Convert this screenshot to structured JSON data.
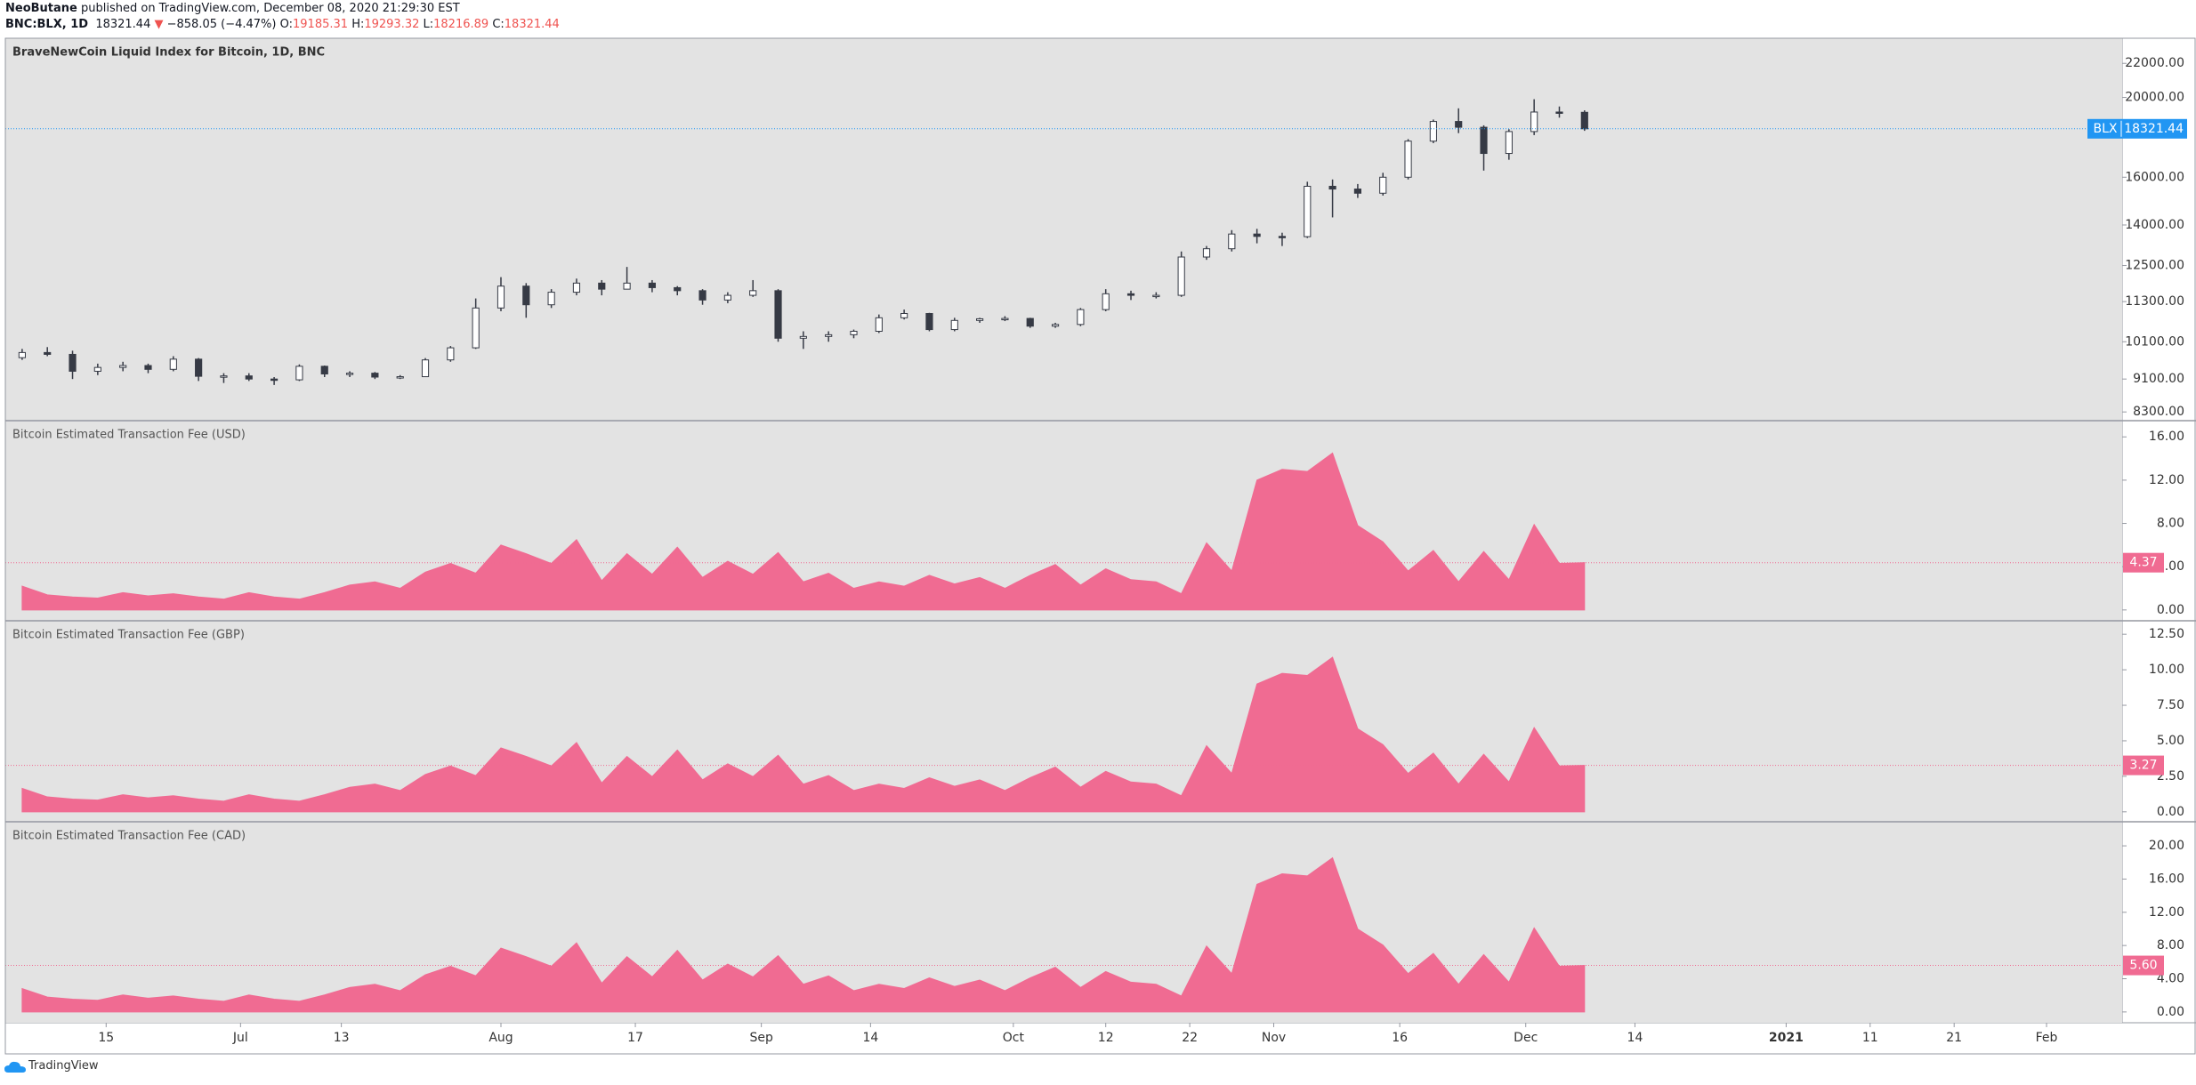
{
  "header": {
    "author": "NeoButane",
    "published": "published on TradingView.com, December 08, 2020 21:29:30 EST",
    "symbol": "BNC:BLX, 1D",
    "last": "18321.44",
    "arrow": "▼",
    "change": "−858.05 (−4.47%)",
    "ohlc": [
      {
        "key": "O:",
        "value": "19185.31"
      },
      {
        "key": "H:",
        "value": "19293.32"
      },
      {
        "key": "L:",
        "value": "18216.89"
      },
      {
        "key": "C:",
        "value": "18321.44"
      }
    ]
  },
  "footer": "TradingView",
  "chart_data": [
    {
      "type": "candlestick",
      "title": "BraveNewCoin Liquid Index for Bitcoin, 1D, BNC",
      "symbol": "BLX",
      "log_scale": true,
      "up_color": "#ffffff",
      "down_color": "#363a45",
      "marker_color": "#2196f3",
      "xlim": [
        "2020-06-03",
        "2021-02-10"
      ],
      "xticks": [
        {
          "value": "2020-06-15",
          "label": "15"
        },
        {
          "value": "2020-07-01",
          "label": "Jul"
        },
        {
          "value": "2020-07-13",
          "label": "13"
        },
        {
          "value": "2020-08-01",
          "label": "Aug"
        },
        {
          "value": "2020-08-17",
          "label": "17"
        },
        {
          "value": "2020-09-01",
          "label": "Sep"
        },
        {
          "value": "2020-09-14",
          "label": "14"
        },
        {
          "value": "2020-10-01",
          "label": "Oct"
        },
        {
          "value": "2020-10-12",
          "label": "12"
        },
        {
          "value": "2020-10-22",
          "label": "22"
        },
        {
          "value": "2020-11-01",
          "label": "Nov"
        },
        {
          "value": "2020-11-16",
          "label": "16"
        },
        {
          "value": "2020-12-01",
          "label": "Dec"
        },
        {
          "value": "2020-12-14",
          "label": "14"
        },
        {
          "value": "2021-01-01",
          "label": "2021"
        },
        {
          "value": "2021-01-11",
          "label": "11"
        },
        {
          "value": "2021-01-21",
          "label": "21"
        },
        {
          "value": "2021-02-01",
          "label": "Feb"
        }
      ],
      "ylim": [
        8100,
        23600
      ],
      "yticks": [
        {
          "value": 8300,
          "label": "8300.00"
        },
        {
          "value": 9100,
          "label": "9100.00"
        },
        {
          "value": 10100,
          "label": "10100.00"
        },
        {
          "value": 11300,
          "label": "11300.00"
        },
        {
          "value": 12500,
          "label": "12500.00"
        },
        {
          "value": 14000,
          "label": "14000.00"
        },
        {
          "value": 16000,
          "label": "16000.00"
        },
        {
          "value": 20000,
          "label": "20000.00"
        },
        {
          "value": 22000,
          "label": "22000.00"
        }
      ],
      "x": [
        "2020-06-05",
        "2020-06-08",
        "2020-06-11",
        "2020-06-14",
        "2020-06-17",
        "2020-06-20",
        "2020-06-23",
        "2020-06-26",
        "2020-06-29",
        "2020-07-02",
        "2020-07-05",
        "2020-07-08",
        "2020-07-11",
        "2020-07-14",
        "2020-07-17",
        "2020-07-20",
        "2020-07-23",
        "2020-07-26",
        "2020-07-29",
        "2020-08-01",
        "2020-08-04",
        "2020-08-07",
        "2020-08-10",
        "2020-08-13",
        "2020-08-16",
        "2020-08-19",
        "2020-08-22",
        "2020-08-25",
        "2020-08-28",
        "2020-08-31",
        "2020-09-03",
        "2020-09-06",
        "2020-09-09",
        "2020-09-12",
        "2020-09-15",
        "2020-09-18",
        "2020-09-21",
        "2020-09-24",
        "2020-09-27",
        "2020-09-30",
        "2020-10-03",
        "2020-10-06",
        "2020-10-09",
        "2020-10-12",
        "2020-10-15",
        "2020-10-18",
        "2020-10-21",
        "2020-10-24",
        "2020-10-27",
        "2020-10-30",
        "2020-11-02",
        "2020-11-05",
        "2020-11-08",
        "2020-11-11",
        "2020-11-14",
        "2020-11-17",
        "2020-11-20",
        "2020-11-23",
        "2020-11-26",
        "2020-11-29",
        "2020-12-02",
        "2020-12-05",
        "2020-12-08"
      ],
      "open": [
        9660,
        9800,
        9750,
        9300,
        9400,
        9450,
        9350,
        9620,
        9170,
        9180,
        9100,
        9080,
        9430,
        9230,
        9250,
        9150,
        9160,
        9600,
        9930,
        11100,
        11800,
        11200,
        11600,
        11900,
        11700,
        11900,
        11750,
        11650,
        11350,
        11500,
        11650,
        10200,
        10250,
        10300,
        10400,
        10800,
        10930,
        10450,
        10720,
        10770,
        10780,
        10550,
        10600,
        11050,
        11550,
        11500,
        11500,
        12800,
        13100,
        13650,
        13560,
        13550,
        15600,
        15480,
        15300,
        16000,
        17700,
        18700,
        18400,
        17100,
        18180,
        19200,
        19185.31
      ],
      "high": [
        9900,
        9950,
        9850,
        9500,
        9550,
        9500,
        9700,
        9650,
        9250,
        9250,
        9150,
        9480,
        9450,
        9300,
        9280,
        9200,
        9650,
        9980,
        11400,
        12100,
        11900,
        11700,
        12050,
        12000,
        12450,
        12000,
        11800,
        11700,
        11600,
        12000,
        11700,
        10400,
        10400,
        10450,
        10900,
        11050,
        10950,
        10800,
        10800,
        10850,
        10800,
        10650,
        11100,
        11700,
        11650,
        11600,
        13000,
        13200,
        13800,
        13850,
        13700,
        15800,
        15900,
        15700,
        16200,
        17800,
        18800,
        19400,
        18500,
        18300,
        19900,
        19500,
        19293.32
      ],
      "low": [
        9600,
        9700,
        9100,
        9200,
        9300,
        9250,
        9300,
        9050,
        9000,
        9050,
        8950,
        9050,
        9150,
        9150,
        9100,
        9100,
        9150,
        9550,
        9900,
        11000,
        10800,
        11100,
        11500,
        11500,
        11700,
        11600,
        11500,
        11200,
        11250,
        11450,
        10100,
        9900,
        10100,
        10200,
        10350,
        10750,
        10400,
        10400,
        10650,
        10700,
        10500,
        10500,
        10550,
        11000,
        11350,
        11400,
        11450,
        12700,
        13000,
        13300,
        13200,
        13500,
        14300,
        15100,
        15200,
        15900,
        17600,
        18100,
        16300,
        16800,
        18000,
        18900,
        18216.89
      ],
      "close": [
        9800,
        9750,
        9300,
        9400,
        9450,
        9350,
        9620,
        9170,
        9180,
        9100,
        9080,
        9430,
        9230,
        9250,
        9150,
        9160,
        9600,
        9930,
        11100,
        11800,
        11200,
        11600,
        11900,
        11700,
        11900,
        11750,
        11650,
        11350,
        11500,
        11650,
        10200,
        10250,
        10300,
        10400,
        10800,
        10930,
        10450,
        10720,
        10770,
        10780,
        10550,
        10600,
        11050,
        11550,
        11500,
        11500,
        12800,
        13100,
        13650,
        13560,
        13550,
        15600,
        15480,
        15300,
        16000,
        17700,
        18700,
        18400,
        17100,
        18180,
        19200,
        19150,
        18321.44
      ]
    },
    {
      "type": "area",
      "title": "Bitcoin Estimated Transaction Fee (USD)",
      "color": "#f06b92",
      "last_label": "4.37",
      "ylim": [
        -1,
        17.5
      ],
      "yticks": [
        {
          "value": 0,
          "label": "0.00"
        },
        {
          "value": 4,
          "label": "4.00"
        },
        {
          "value": 8,
          "label": "8.00"
        },
        {
          "value": 12,
          "label": "12.00"
        },
        {
          "value": 16,
          "label": "16.00"
        }
      ],
      "x": [
        "2020-06-05",
        "2020-06-08",
        "2020-06-11",
        "2020-06-14",
        "2020-06-17",
        "2020-06-20",
        "2020-06-23",
        "2020-06-26",
        "2020-06-29",
        "2020-07-02",
        "2020-07-05",
        "2020-07-08",
        "2020-07-11",
        "2020-07-14",
        "2020-07-17",
        "2020-07-20",
        "2020-07-23",
        "2020-07-26",
        "2020-07-29",
        "2020-08-01",
        "2020-08-04",
        "2020-08-07",
        "2020-08-10",
        "2020-08-13",
        "2020-08-16",
        "2020-08-19",
        "2020-08-22",
        "2020-08-25",
        "2020-08-28",
        "2020-08-31",
        "2020-09-03",
        "2020-09-06",
        "2020-09-09",
        "2020-09-12",
        "2020-09-15",
        "2020-09-18",
        "2020-09-21",
        "2020-09-24",
        "2020-09-27",
        "2020-09-30",
        "2020-10-03",
        "2020-10-06",
        "2020-10-09",
        "2020-10-12",
        "2020-10-15",
        "2020-10-18",
        "2020-10-21",
        "2020-10-24",
        "2020-10-27",
        "2020-10-30",
        "2020-11-02",
        "2020-11-05",
        "2020-11-08",
        "2020-11-11",
        "2020-11-14",
        "2020-11-17",
        "2020-11-20",
        "2020-11-23",
        "2020-11-26",
        "2020-11-29",
        "2020-12-02",
        "2020-12-05",
        "2020-12-08"
      ],
      "values": [
        2.2,
        1.4,
        1.2,
        1.1,
        1.6,
        1.3,
        1.5,
        1.2,
        1.0,
        1.6,
        1.2,
        1.0,
        1.6,
        2.3,
        2.6,
        2.0,
        3.5,
        4.3,
        3.4,
        6.0,
        5.2,
        4.3,
        6.5,
        2.7,
        5.2,
        3.3,
        5.8,
        3.0,
        4.5,
        3.3,
        5.3,
        2.6,
        3.4,
        2.0,
        2.6,
        2.2,
        3.2,
        2.4,
        3.0,
        2.0,
        3.2,
        4.2,
        2.3,
        3.8,
        2.8,
        2.6,
        1.5,
        6.2,
        3.6,
        12.0,
        13.0,
        12.8,
        14.5,
        7.8,
        6.3,
        3.6,
        5.5,
        2.6,
        5.4,
        2.8,
        7.9,
        4.3,
        4.37
      ]
    },
    {
      "type": "area",
      "title": "Bitcoin Estimated Transaction Fee (GBP)",
      "color": "#f06b92",
      "last_label": "3.27",
      "ylim": [
        -0.7,
        13.45
      ],
      "yticks": [
        {
          "value": 0,
          "label": "0.00"
        },
        {
          "value": 2.5,
          "label": "2.50"
        },
        {
          "value": 5,
          "label": "5.00"
        },
        {
          "value": 7.5,
          "label": "7.50"
        },
        {
          "value": 10,
          "label": "10.00"
        },
        {
          "value": 12.5,
          "label": "12.50"
        }
      ],
      "x": [
        "2020-06-05",
        "2020-06-08",
        "2020-06-11",
        "2020-06-14",
        "2020-06-17",
        "2020-06-20",
        "2020-06-23",
        "2020-06-26",
        "2020-06-29",
        "2020-07-02",
        "2020-07-05",
        "2020-07-08",
        "2020-07-11",
        "2020-07-14",
        "2020-07-17",
        "2020-07-20",
        "2020-07-23",
        "2020-07-26",
        "2020-07-29",
        "2020-08-01",
        "2020-08-04",
        "2020-08-07",
        "2020-08-10",
        "2020-08-13",
        "2020-08-16",
        "2020-08-19",
        "2020-08-22",
        "2020-08-25",
        "2020-08-28",
        "2020-08-31",
        "2020-09-03",
        "2020-09-06",
        "2020-09-09",
        "2020-09-12",
        "2020-09-15",
        "2020-09-18",
        "2020-09-21",
        "2020-09-24",
        "2020-09-27",
        "2020-09-30",
        "2020-10-03",
        "2020-10-06",
        "2020-10-09",
        "2020-10-12",
        "2020-10-15",
        "2020-10-18",
        "2020-10-21",
        "2020-10-24",
        "2020-10-27",
        "2020-10-30",
        "2020-11-02",
        "2020-11-05",
        "2020-11-08",
        "2020-11-11",
        "2020-11-14",
        "2020-11-17",
        "2020-11-20",
        "2020-11-23",
        "2020-11-26",
        "2020-11-29",
        "2020-12-02",
        "2020-12-05",
        "2020-12-08"
      ],
      "values": [
        1.65,
        1.05,
        0.9,
        0.83,
        1.2,
        0.98,
        1.13,
        0.9,
        0.75,
        1.2,
        0.9,
        0.75,
        1.2,
        1.73,
        1.95,
        1.5,
        2.63,
        3.23,
        2.55,
        4.5,
        3.9,
        3.23,
        4.88,
        2.03,
        3.9,
        2.48,
        4.35,
        2.25,
        3.38,
        2.48,
        3.98,
        1.95,
        2.55,
        1.5,
        1.95,
        1.65,
        2.4,
        1.8,
        2.25,
        1.5,
        2.4,
        3.15,
        1.73,
        2.85,
        2.1,
        1.95,
        1.13,
        4.65,
        2.7,
        9.0,
        9.75,
        9.6,
        10.88,
        5.85,
        4.73,
        2.7,
        4.13,
        1.95,
        4.05,
        2.1,
        5.93,
        3.23,
        3.27
      ]
    },
    {
      "type": "area",
      "title": "Bitcoin Estimated Transaction Fee (CAD)",
      "color": "#f06b92",
      "last_label": "5.60",
      "ylim": [
        -1.3,
        22.9
      ],
      "yticks": [
        {
          "value": 0,
          "label": "0.00"
        },
        {
          "value": 4,
          "label": "4.00"
        },
        {
          "value": 8,
          "label": "8.00"
        },
        {
          "value": 12,
          "label": "12.00"
        },
        {
          "value": 16,
          "label": "16.00"
        },
        {
          "value": 20,
          "label": "20.00"
        }
      ],
      "x": [
        "2020-06-05",
        "2020-06-08",
        "2020-06-11",
        "2020-06-14",
        "2020-06-17",
        "2020-06-20",
        "2020-06-23",
        "2020-06-26",
        "2020-06-29",
        "2020-07-02",
        "2020-07-05",
        "2020-07-08",
        "2020-07-11",
        "2020-07-14",
        "2020-07-17",
        "2020-07-20",
        "2020-07-23",
        "2020-07-26",
        "2020-07-29",
        "2020-08-01",
        "2020-08-04",
        "2020-08-07",
        "2020-08-10",
        "2020-08-13",
        "2020-08-16",
        "2020-08-19",
        "2020-08-22",
        "2020-08-25",
        "2020-08-28",
        "2020-08-31",
        "2020-09-03",
        "2020-09-06",
        "2020-09-09",
        "2020-09-12",
        "2020-09-15",
        "2020-09-18",
        "2020-09-21",
        "2020-09-24",
        "2020-09-27",
        "2020-09-30",
        "2020-10-03",
        "2020-10-06",
        "2020-10-09",
        "2020-10-12",
        "2020-10-15",
        "2020-10-18",
        "2020-10-21",
        "2020-10-24",
        "2020-10-27",
        "2020-10-30",
        "2020-11-02",
        "2020-11-05",
        "2020-11-08",
        "2020-11-11",
        "2020-11-14",
        "2020-11-17",
        "2020-11-20",
        "2020-11-23",
        "2020-11-26",
        "2020-11-29",
        "2020-12-02",
        "2020-12-05",
        "2020-12-08"
      ],
      "values": [
        2.82,
        1.79,
        1.54,
        1.41,
        2.05,
        1.66,
        1.92,
        1.54,
        1.28,
        2.05,
        1.54,
        1.28,
        2.05,
        2.94,
        3.33,
        2.56,
        4.48,
        5.5,
        4.35,
        7.68,
        6.66,
        5.5,
        8.32,
        3.46,
        6.66,
        4.22,
        7.42,
        3.84,
        5.76,
        4.22,
        6.78,
        3.33,
        4.35,
        2.56,
        3.33,
        2.82,
        4.1,
        3.07,
        3.84,
        2.56,
        4.1,
        5.38,
        2.94,
        4.86,
        3.58,
        3.33,
        1.92,
        7.94,
        4.61,
        15.36,
        16.64,
        16.38,
        18.56,
        9.98,
        8.06,
        4.61,
        7.04,
        3.33,
        6.91,
        3.58,
        10.11,
        5.5,
        5.6
      ]
    }
  ]
}
